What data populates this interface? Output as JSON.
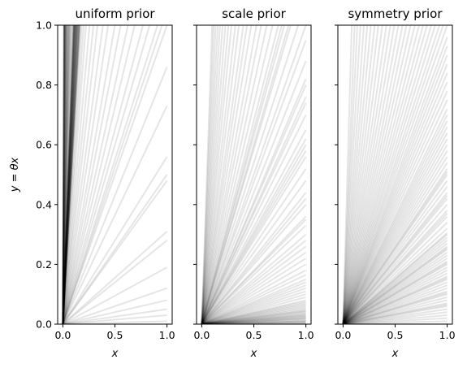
{
  "chart_data": {
    "type": "line",
    "shared_y": true,
    "ylabel": "y = θx",
    "ytick_labels": [
      "0.0",
      "0.2",
      "0.4",
      "0.6",
      "0.8",
      "1.0"
    ],
    "yticks": [
      0.0,
      0.2,
      0.4,
      0.6,
      0.8,
      1.0
    ],
    "line_color": "#000000",
    "line_alpha": 0.1,
    "panels": [
      {
        "title": "uniform prior",
        "xlabel": "x",
        "xlim": [
          -0.05,
          1.05
        ],
        "ylim": [
          0,
          1
        ],
        "xticks": [
          0.0,
          0.5,
          1.0
        ],
        "xtick_labels": [
          "0.0",
          "0.5",
          "1.0"
        ],
        "x": [
          0,
          1
        ],
        "slopes": [
          0.01,
          0.03,
          0.05,
          0.08,
          0.12,
          0.19,
          0.28,
          0.31,
          0.48,
          0.5,
          0.56,
          0.73,
          0.86,
          1.0,
          1.05,
          1.1,
          1.2,
          1.3,
          1.45,
          1.6,
          1.8,
          2.0,
          2.3,
          2.6,
          3.0,
          3.4,
          3.9,
          4.5,
          5.0,
          5.5,
          6.0,
          6.5,
          7.0,
          7.5,
          8.0,
          9.0,
          10.0,
          11.0,
          12.0,
          13.0,
          14.0,
          15.0,
          16.0,
          17.0,
          18.0,
          19.0,
          20.0,
          22.0,
          24.0,
          26.0,
          28.0,
          30.0,
          32.0,
          35.0,
          38.0,
          41.0,
          44.0,
          47.0,
          50.0,
          55.0,
          60.0,
          65.0,
          70.0,
          75.0,
          80.0,
          85.0,
          90.0,
          95.0,
          100.0,
          6.2,
          6.4,
          6.6,
          6.8,
          7.2,
          7.4,
          7.6,
          7.8,
          8.2,
          8.4,
          8.6,
          8.8,
          9.2,
          9.4,
          9.6,
          9.8,
          6.1,
          6.3,
          6.7,
          7.1,
          7.3,
          7.7,
          8.1,
          8.3,
          8.7,
          9.1,
          9.3,
          9.7
        ]
      },
      {
        "title": "scale prior",
        "xlabel": "x",
        "xlim": [
          -0.05,
          1.05
        ],
        "ylim": [
          0,
          1
        ],
        "xticks": [
          0.0,
          0.5,
          1.0
        ],
        "xtick_labels": [
          "0.0",
          "0.5",
          "1.0"
        ],
        "x": [
          0,
          1
        ],
        "slopes": [
          0.002,
          0.004,
          0.006,
          0.008,
          0.01,
          0.012,
          0.015,
          0.018,
          0.02,
          0.022,
          0.025,
          0.028,
          0.03,
          0.033,
          0.036,
          0.04,
          0.043,
          0.046,
          0.05,
          0.055,
          0.06,
          0.065,
          0.07,
          0.075,
          0.08,
          0.09,
          0.1,
          0.11,
          0.12,
          0.13,
          0.14,
          0.15,
          0.165,
          0.18,
          0.2,
          0.22,
          0.24,
          0.26,
          0.28,
          0.3,
          0.33,
          0.36,
          0.4,
          0.44,
          0.48,
          0.52,
          0.56,
          0.6,
          0.65,
          0.7,
          0.76,
          0.82,
          0.88,
          0.95,
          1.0,
          1.08,
          1.17,
          1.26,
          1.36,
          1.47,
          1.6,
          1.75,
          1.9,
          2.1,
          2.3,
          2.5,
          2.8,
          3.1,
          3.5,
          3.9,
          4.4,
          5.0,
          5.7,
          6.5,
          7.5,
          8.7,
          10.0,
          0.35,
          0.42,
          0.58,
          0.62,
          0.74,
          0.8,
          1.2,
          1.3
        ]
      },
      {
        "title": "symmetry prior",
        "xlabel": "x",
        "xlim": [
          -0.05,
          1.05
        ],
        "ylim": [
          0,
          1
        ],
        "xticks": [
          0.0,
          0.5,
          1.0
        ],
        "xtick_labels": [
          "0.0",
          "0.5",
          "1.0"
        ],
        "x": [
          0,
          1
        ],
        "slopes": [
          0.0,
          0.01,
          0.02,
          0.03,
          0.04,
          0.05,
          0.06,
          0.07,
          0.08,
          0.09,
          0.1,
          0.11,
          0.12,
          0.13,
          0.14,
          0.15,
          0.16,
          0.17,
          0.18,
          0.19,
          0.2,
          0.21,
          0.22,
          0.23,
          0.24,
          0.25,
          0.26,
          0.27,
          0.28,
          0.29,
          0.3,
          0.32,
          0.34,
          0.36,
          0.38,
          0.4,
          0.42,
          0.44,
          0.46,
          0.48,
          0.5,
          0.52,
          0.54,
          0.56,
          0.58,
          0.6,
          0.62,
          0.64,
          0.66,
          0.68,
          0.7,
          0.72,
          0.75,
          0.78,
          0.81,
          0.84,
          0.87,
          0.9,
          0.93,
          0.96,
          1.0,
          1.04,
          1.08,
          1.13,
          1.18,
          1.24,
          1.3,
          1.37,
          1.45,
          1.54,
          1.64,
          1.75,
          1.88,
          2.03,
          2.2,
          2.4,
          2.65,
          2.95,
          3.3,
          3.75,
          4.3,
          5.0,
          6.0,
          7.3,
          9.0,
          12.0,
          0.065,
          0.105,
          0.155,
          0.205,
          0.255,
          0.305,
          0.37,
          0.43,
          0.51
        ]
      }
    ]
  }
}
